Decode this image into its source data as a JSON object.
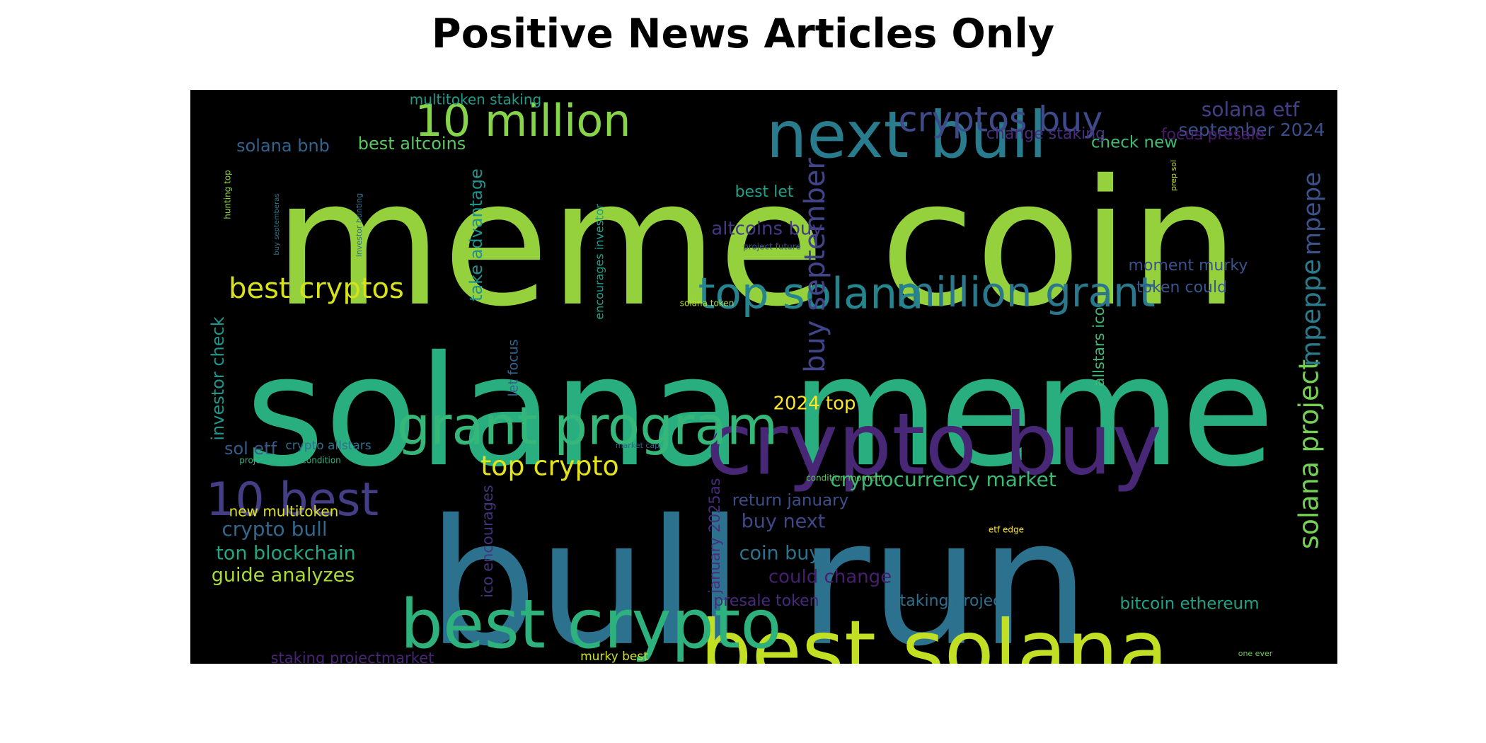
{
  "title": "Positive News Articles Only",
  "colors": {
    "background": "#000000",
    "title": "#000000",
    "page": "#ffffff"
  },
  "words": [
    {
      "text": "meme coin",
      "color": "#95d13c"
    },
    {
      "text": "solana meme",
      "color": "#29af7f"
    },
    {
      "text": "bull run",
      "color": "#2c728e"
    },
    {
      "text": "best solana",
      "color": "#c2df23"
    },
    {
      "text": "crypto buy",
      "color": "#482777"
    },
    {
      "text": "best crypto",
      "color": "#2db27d"
    },
    {
      "text": "next bull",
      "color": "#287c8e"
    },
    {
      "text": "grant program",
      "color": "#35b779"
    },
    {
      "text": "10 million",
      "color": "#86d549"
    },
    {
      "text": "million grant",
      "color": "#2a788e"
    },
    {
      "text": "cryptos buy",
      "color": "#3e4a89"
    },
    {
      "text": "top solana",
      "color": "#25858e"
    },
    {
      "text": "10 best",
      "color": "#433e85"
    },
    {
      "text": "solana project",
      "color": "#74d055"
    },
    {
      "text": "best cryptos",
      "color": "#d8e219"
    },
    {
      "text": "buy september",
      "color": "#414487"
    },
    {
      "text": "mpeppe",
      "color": "#2a7b8e"
    },
    {
      "text": "mpepe",
      "color": "#3b528b"
    },
    {
      "text": "top crypto",
      "color": "#e5e419"
    },
    {
      "text": "cryptocurrency market",
      "color": "#3aba76"
    },
    {
      "text": "solana etf",
      "color": "#424086"
    },
    {
      "text": "september 2024",
      "color": "#3c4f8a"
    },
    {
      "text": "crypto bull",
      "color": "#31688e"
    },
    {
      "text": "ton blockchain",
      "color": "#21a685"
    },
    {
      "text": "guide analyzes",
      "color": "#a8db34"
    },
    {
      "text": "coin buy",
      "color": "#2c738e"
    },
    {
      "text": "buy next",
      "color": "#3f4788"
    },
    {
      "text": "return january",
      "color": "#3d4e8a"
    },
    {
      "text": "could change",
      "color": "#481f70"
    },
    {
      "text": "2024 top",
      "color": "#fde725"
    },
    {
      "text": "altcoins buy",
      "color": "#443983"
    },
    {
      "text": "take advantage",
      "color": "#20928c"
    },
    {
      "text": "investor check",
      "color": "#1f968b"
    },
    {
      "text": "best altcoins",
      "color": "#5cc863"
    },
    {
      "text": "solana bnb",
      "color": "#33638d"
    },
    {
      "text": "sol etf",
      "color": "#365c8d"
    },
    {
      "text": "new multitoken",
      "color": "#dde318"
    },
    {
      "text": "multitoken staking",
      "color": "#1e9b8a"
    },
    {
      "text": "check new",
      "color": "#3dbc74"
    },
    {
      "text": "change staking",
      "color": "#46307e"
    },
    {
      "text": "focus presale",
      "color": "#481b6d"
    },
    {
      "text": "moment murky",
      "color": "#3b528b"
    },
    {
      "text": "token could",
      "color": "#39568c"
    },
    {
      "text": "best let",
      "color": "#1fa088"
    },
    {
      "text": "allstars ico",
      "color": "#3fbc73"
    },
    {
      "text": "january 2025as",
      "color": "#472d7b"
    },
    {
      "text": "ico encourages",
      "color": "#46327e"
    },
    {
      "text": "let focus",
      "color": "#32648e"
    },
    {
      "text": "presale token",
      "color": "#472a7a"
    },
    {
      "text": "staking project",
      "color": "#2e6f8e"
    },
    {
      "text": "bitcoin ethereum",
      "color": "#20a386"
    },
    {
      "text": "staking projectmarket",
      "color": "#482475"
    },
    {
      "text": "murky best",
      "color": "#d0e11c"
    },
    {
      "text": "crypto allstars",
      "color": "#2d718e"
    },
    {
      "text": "encourages investor",
      "color": "#1f9e89"
    },
    {
      "text": "investor hunting",
      "color": "#2c728e"
    },
    {
      "text": "hunting top",
      "color": "#8bd646"
    },
    {
      "text": "buy septemberas",
      "color": "#2a768e"
    },
    {
      "text": "project future",
      "color": "#39558c"
    },
    {
      "text": "solana token",
      "color": "#b5de2b"
    },
    {
      "text": "projectmarket condition",
      "color": "#2db27d"
    },
    {
      "text": "market cap",
      "color": "#33628d"
    },
    {
      "text": "condition moment",
      "color": "#5ec962"
    },
    {
      "text": "etf edge",
      "color": "#fde725"
    },
    {
      "text": "prep sol",
      "color": "#c8e020"
    },
    {
      "text": "one ever",
      "color": "#6ece58"
    }
  ]
}
